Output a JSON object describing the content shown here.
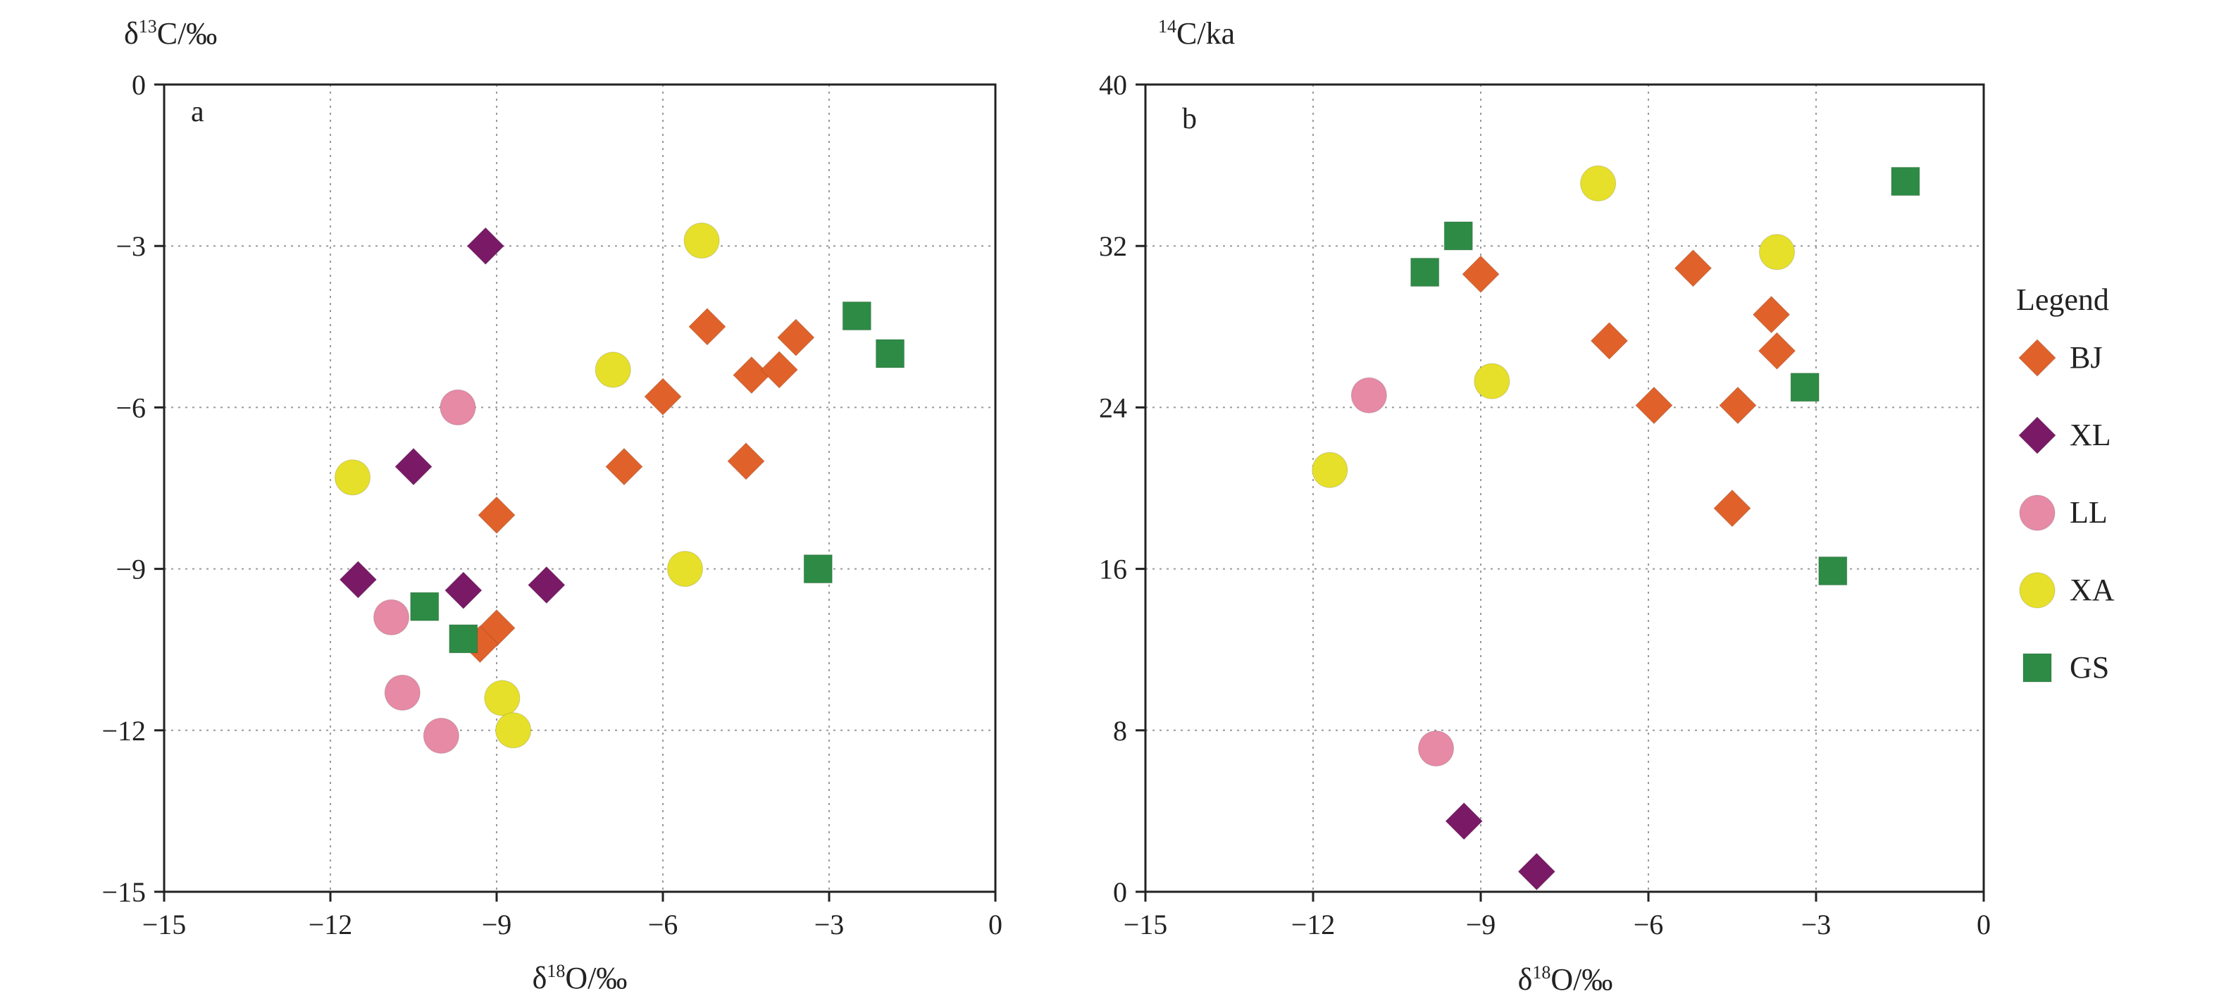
{
  "colors": {
    "BJ": "#e0622a",
    "XL": "#7a1a66",
    "LL": "#e68aa6",
    "XA": "#e6e02a",
    "GS": "#2e8b45"
  },
  "legend": {
    "title": "Legend",
    "items": [
      {
        "label": "BJ",
        "shape": "diamond",
        "color": "#e0622a"
      },
      {
        "label": "XL",
        "shape": "diamond",
        "color": "#7a1a66"
      },
      {
        "label": "LL",
        "shape": "circle",
        "color": "#e68aa6"
      },
      {
        "label": "XA",
        "shape": "circle",
        "color": "#e6e02a"
      },
      {
        "label": "GS",
        "shape": "square",
        "color": "#2e8b45"
      }
    ]
  },
  "chart_data": [
    {
      "type": "scatter",
      "panel_label": "a",
      "xlabel_main": "δ",
      "xlabel_sup": "18",
      "xlabel_rest": "O/‰",
      "ylabel_main": "δ",
      "ylabel_sup": "13",
      "ylabel_rest": "C/‰",
      "xlim": [
        -15,
        0
      ],
      "ylim": [
        -15,
        0
      ],
      "xticks": [
        -15,
        -12,
        -9,
        -6,
        -3,
        0
      ],
      "yticks": [
        0,
        -3,
        -6,
        -9,
        -12,
        -15
      ],
      "xtick_labels": [
        "−15",
        "−12",
        "−9",
        "−6",
        "−3",
        "0"
      ],
      "ytick_labels": [
        "0",
        "−3",
        "−6",
        "−9",
        "−12",
        "−15"
      ],
      "grid": true,
      "series": [
        {
          "name": "BJ",
          "marker": "diamond",
          "points": [
            [
              -5.2,
              -4.5
            ],
            [
              -3.6,
              -4.7
            ],
            [
              -4.4,
              -5.4
            ],
            [
              -3.9,
              -5.3
            ],
            [
              -6.0,
              -5.8
            ],
            [
              -6.7,
              -7.1
            ],
            [
              -4.5,
              -7.0
            ],
            [
              -9.0,
              -8.0
            ],
            [
              -9.0,
              -10.1
            ],
            [
              -9.3,
              -10.4
            ]
          ]
        },
        {
          "name": "XL",
          "marker": "diamond",
          "points": [
            [
              -9.2,
              -3.0
            ],
            [
              -10.5,
              -7.1
            ],
            [
              -11.5,
              -9.2
            ],
            [
              -9.6,
              -9.4
            ],
            [
              -8.1,
              -9.3
            ]
          ]
        },
        {
          "name": "LL",
          "marker": "circle",
          "points": [
            [
              -9.7,
              -6.0
            ],
            [
              -10.9,
              -9.9
            ],
            [
              -10.7,
              -11.3
            ],
            [
              -10.0,
              -12.1
            ]
          ]
        },
        {
          "name": "XA",
          "marker": "circle",
          "points": [
            [
              -5.3,
              -2.9
            ],
            [
              -6.9,
              -5.3
            ],
            [
              -11.6,
              -7.3
            ],
            [
              -5.6,
              -9.0
            ],
            [
              -8.9,
              -11.4
            ],
            [
              -8.7,
              -12.0
            ]
          ]
        },
        {
          "name": "GS",
          "marker": "square",
          "points": [
            [
              -2.5,
              -4.3
            ],
            [
              -1.9,
              -5.0
            ],
            [
              -3.2,
              -9.0
            ],
            [
              -10.3,
              -9.7
            ],
            [
              -9.6,
              -10.3
            ]
          ]
        }
      ]
    },
    {
      "type": "scatter",
      "panel_label": "b",
      "xlabel_main": "δ",
      "xlabel_sup": "18",
      "xlabel_rest": "O/‰",
      "ylabel_main": "",
      "ylabel_sup": "14",
      "ylabel_rest": "C/ka",
      "xlim": [
        -15,
        0
      ],
      "ylim": [
        0,
        40
      ],
      "xticks": [
        -15,
        -12,
        -9,
        -6,
        -3,
        0
      ],
      "yticks": [
        40,
        32,
        24,
        16,
        8,
        0
      ],
      "xtick_labels": [
        "−15",
        "−12",
        "−9",
        "−6",
        "−3",
        "0"
      ],
      "ytick_labels": [
        "40",
        "32",
        "24",
        "16",
        "8",
        "0"
      ],
      "grid": true,
      "series": [
        {
          "name": "BJ",
          "marker": "diamond",
          "points": [
            [
              -9.0,
              30.6
            ],
            [
              -5.2,
              30.9
            ],
            [
              -3.8,
              28.6
            ],
            [
              -6.7,
              27.3
            ],
            [
              -3.7,
              26.8
            ],
            [
              -5.9,
              24.1
            ],
            [
              -4.4,
              24.1
            ],
            [
              -4.5,
              19.0
            ]
          ]
        },
        {
          "name": "XL",
          "marker": "diamond",
          "points": [
            [
              -9.3,
              3.5
            ],
            [
              -8.0,
              1.0
            ]
          ]
        },
        {
          "name": "LL",
          "marker": "circle",
          "points": [
            [
              -11.0,
              24.6
            ],
            [
              -9.8,
              7.1
            ]
          ]
        },
        {
          "name": "XA",
          "marker": "circle",
          "points": [
            [
              -6.9,
              35.1
            ],
            [
              -3.7,
              31.7
            ],
            [
              -8.8,
              25.3
            ],
            [
              -11.7,
              20.9
            ]
          ]
        },
        {
          "name": "GS",
          "marker": "square",
          "points": [
            [
              -1.4,
              35.2
            ],
            [
              -9.4,
              32.5
            ],
            [
              -10.0,
              30.7
            ],
            [
              -3.2,
              25.0
            ],
            [
              -2.7,
              15.9
            ]
          ]
        }
      ]
    }
  ]
}
